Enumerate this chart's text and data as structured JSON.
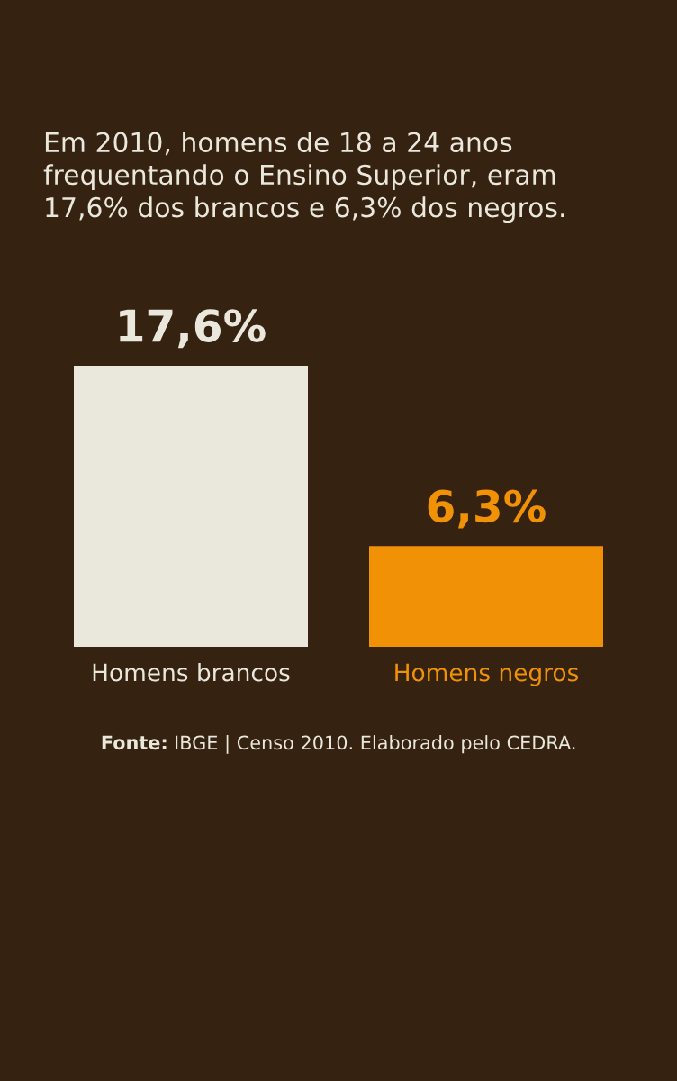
{
  "chart_data": {
    "type": "bar",
    "title": "Em 2010, homens de 18 a 24 anos frequentando o Ensino Superior, eram 17,6% dos brancos e 6,3% dos negros.",
    "categories": [
      "Homens brancos",
      "Homens negros"
    ],
    "values": [
      17.6,
      6.3
    ],
    "colors": [
      "#eae8dc",
      "#f09106"
    ],
    "value_labels": [
      "17,6%",
      "6,3%"
    ],
    "annotations": [
      "Fonte: IBGE | Censo 2010. Elaborado pelo CEDRA."
    ]
  }
}
